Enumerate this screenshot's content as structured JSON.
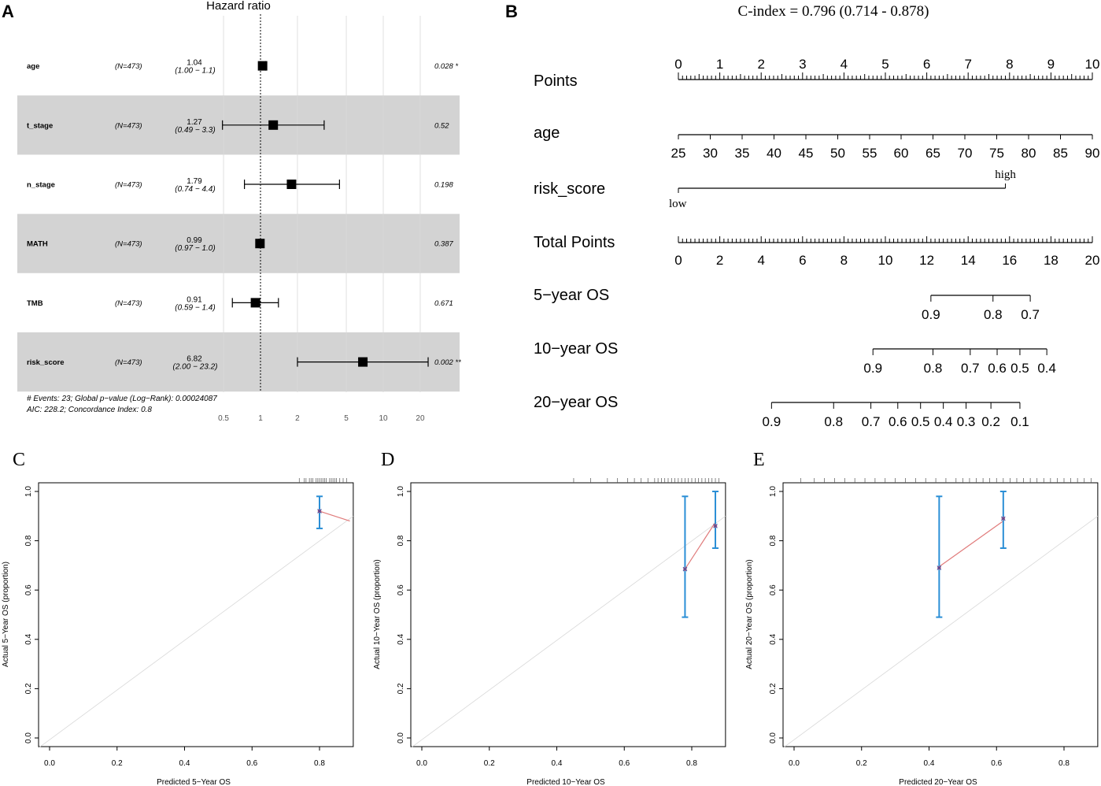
{
  "chart_data": [
    {
      "panel": "A",
      "type": "forest",
      "title": "Hazard ratio",
      "x_scale": "log",
      "x_ticks": [
        "0.5",
        "1",
        "2",
        "5",
        "10",
        "20"
      ],
      "reference_line": 1,
      "rows": [
        {
          "label": "age",
          "n": "(N=473)",
          "hr": 1.04,
          "lo": 1.0,
          "hi": 1.1,
          "hr_text": "1.04",
          "ci_text": "(1.00 −  1.1)",
          "p_text": "0.028 *",
          "shaded": false
        },
        {
          "label": "t_stage",
          "n": "(N=473)",
          "hr": 1.27,
          "lo": 0.49,
          "hi": 3.3,
          "hr_text": "1.27",
          "ci_text": "(0.49 −  3.3)",
          "p_text": "0.52",
          "shaded": true
        },
        {
          "label": "n_stage",
          "n": "(N=473)",
          "hr": 1.79,
          "lo": 0.74,
          "hi": 4.4,
          "hr_text": "1.79",
          "ci_text": "(0.74 −  4.4)",
          "p_text": "0.198",
          "shaded": false
        },
        {
          "label": "MATH",
          "n": "(N=473)",
          "hr": 0.99,
          "lo": 0.97,
          "hi": 1.0,
          "hr_text": "0.99",
          "ci_text": "(0.97 −  1.0)",
          "p_text": "0.387",
          "shaded": true
        },
        {
          "label": "TMB",
          "n": "(N=473)",
          "hr": 0.91,
          "lo": 0.59,
          "hi": 1.4,
          "hr_text": "0.91",
          "ci_text": "(0.59 −  1.4)",
          "p_text": "0.671",
          "shaded": false
        },
        {
          "label": "risk_score",
          "n": "(N=473)",
          "hr": 6.82,
          "lo": 2.0,
          "hi": 23.2,
          "hr_text": "6.82",
          "ci_text": "(2.00 − 23.2)",
          "p_text": "0.002 **",
          "shaded": true
        }
      ],
      "footnote_1": "# Events: 23; Global p−value (Log−Rank): 0.00024087",
      "footnote_2": "AIC: 228.2; Concordance Index: 0.8"
    },
    {
      "panel": "B",
      "type": "nomogram",
      "title": "C-index = 0.796 (0.714 - 0.878)",
      "scales": [
        {
          "name": "Points",
          "ticks": [
            {
              "v": 0,
              "label": "0"
            },
            {
              "v": 1,
              "label": "1"
            },
            {
              "v": 2,
              "label": "2"
            },
            {
              "v": 3,
              "label": "3"
            },
            {
              "v": 4,
              "label": "4"
            },
            {
              "v": 5,
              "label": "5"
            },
            {
              "v": 6,
              "label": "6"
            },
            {
              "v": 7,
              "label": "7"
            },
            {
              "v": 8,
              "label": "8"
            },
            {
              "v": 9,
              "label": "9"
            },
            {
              "v": 10,
              "label": "10"
            }
          ]
        },
        {
          "name": "age",
          "ticks": [
            {
              "v": 0,
              "label": "25"
            },
            {
              "v": 0.77,
              "label": "30"
            },
            {
              "v": 1.54,
              "label": "35"
            },
            {
              "v": 2.31,
              "label": "40"
            },
            {
              "v": 3.08,
              "label": "45"
            },
            {
              "v": 3.85,
              "label": "50"
            },
            {
              "v": 4.62,
              "label": "55"
            },
            {
              "v": 5.38,
              "label": "60"
            },
            {
              "v": 6.15,
              "label": "65"
            },
            {
              "v": 6.92,
              "label": "70"
            },
            {
              "v": 7.69,
              "label": "75"
            },
            {
              "v": 8.46,
              "label": "80"
            },
            {
              "v": 9.23,
              "label": "85"
            },
            {
              "v": 10,
              "label": "90"
            }
          ]
        },
        {
          "name": "risk_score",
          "low_label": "low",
          "high_label": "high",
          "low_v": 0,
          "high_v": 7.9
        },
        {
          "name": "Total Points",
          "ticks": [
            {
              "v": 0,
              "label": "0"
            },
            {
              "v": 2,
              "label": "2"
            },
            {
              "v": 4,
              "label": "4"
            },
            {
              "v": 6,
              "label": "6"
            },
            {
              "v": 8,
              "label": "8"
            },
            {
              "v": 10,
              "label": "10"
            },
            {
              "v": 12,
              "label": "12"
            },
            {
              "v": 14,
              "label": "14"
            },
            {
              "v": 16,
              "label": "16"
            },
            {
              "v": 18,
              "label": "18"
            },
            {
              "v": 20,
              "label": "20"
            }
          ]
        },
        {
          "name": "5−year OS",
          "ticks": [
            {
              "v": 12.2,
              "label": "0.9"
            },
            {
              "v": 15.2,
              "label": "0.8"
            },
            {
              "v": 17.0,
              "label": "0.7"
            }
          ]
        },
        {
          "name": "10−year OS",
          "ticks": [
            {
              "v": 9.4,
              "label": "0.9"
            },
            {
              "v": 12.3,
              "label": "0.8"
            },
            {
              "v": 14.1,
              "label": "0.7"
            },
            {
              "v": 15.4,
              "label": "0.6"
            },
            {
              "v": 16.5,
              "label": "0.5"
            },
            {
              "v": 17.8,
              "label": "0.4"
            }
          ]
        },
        {
          "name": "20−year OS",
          "ticks": [
            {
              "v": 4.5,
              "label": "0.9"
            },
            {
              "v": 7.5,
              "label": "0.8"
            },
            {
              "v": 9.3,
              "label": "0.7"
            },
            {
              "v": 10.6,
              "label": "0.6"
            },
            {
              "v": 11.7,
              "label": "0.5"
            },
            {
              "v": 12.8,
              "label": "0.4"
            },
            {
              "v": 13.9,
              "label": "0.3"
            },
            {
              "v": 15.1,
              "label": "0.2"
            },
            {
              "v": 16.5,
              "label": "0.1"
            }
          ]
        }
      ]
    },
    {
      "panel": "C",
      "type": "calibration",
      "xlabel": "Predicted 5−Year OS",
      "ylabel": "Actual 5−Year OS (proportion)",
      "xlim": [
        0,
        0.9
      ],
      "ylim": [
        0,
        1
      ],
      "x_ticks": [
        "0.0",
        "0.2",
        "0.4",
        "0.6",
        "0.8"
      ],
      "y_ticks": [
        "0.0",
        "0.2",
        "0.4",
        "0.6",
        "0.8",
        "1.0"
      ],
      "points": [
        {
          "x": 0.8,
          "y": 0.92,
          "lo": 0.85,
          "hi": 0.98
        }
      ],
      "curve": [
        [
          0.8,
          0.92
        ],
        [
          0.89,
          0.88
        ]
      ],
      "rug": [
        0.74,
        0.755,
        0.76,
        0.77,
        0.775,
        0.78,
        0.79,
        0.795,
        0.8,
        0.805,
        0.81,
        0.815,
        0.82,
        0.83,
        0.835,
        0.84,
        0.845,
        0.85,
        0.86,
        0.87,
        0.88
      ]
    },
    {
      "panel": "D",
      "type": "calibration",
      "xlabel": "Predicted 10−Year OS",
      "ylabel": "Actual 10−Year OS (proportion)",
      "xlim": [
        0,
        0.9
      ],
      "ylim": [
        0,
        1
      ],
      "x_ticks": [
        "0.0",
        "0.2",
        "0.4",
        "0.6",
        "0.8"
      ],
      "y_ticks": [
        "0.0",
        "0.2",
        "0.4",
        "0.6",
        "0.8",
        "1.0"
      ],
      "points": [
        {
          "x": 0.78,
          "y": 0.685,
          "lo": 0.49,
          "hi": 0.98
        },
        {
          "x": 0.87,
          "y": 0.86,
          "lo": 0.77,
          "hi": 1.0
        }
      ],
      "curve": [
        [
          0.78,
          0.685
        ],
        [
          0.87,
          0.875
        ]
      ],
      "rug": [
        0.45,
        0.5,
        0.55,
        0.58,
        0.61,
        0.63,
        0.65,
        0.67,
        0.69,
        0.7,
        0.71,
        0.72,
        0.73,
        0.74,
        0.75,
        0.76,
        0.77,
        0.78,
        0.79,
        0.8,
        0.81,
        0.82,
        0.83,
        0.84,
        0.85,
        0.86,
        0.87,
        0.88
      ]
    },
    {
      "panel": "E",
      "type": "calibration",
      "xlabel": "Predicted 20−Year OS",
      "ylabel": "Actual 20−Year OS (proportion)",
      "xlim": [
        0,
        0.9
      ],
      "ylim": [
        0,
        1
      ],
      "x_ticks": [
        "0.0",
        "0.2",
        "0.4",
        "0.6",
        "0.8"
      ],
      "y_ticks": [
        "0.0",
        "0.2",
        "0.4",
        "0.6",
        "0.8",
        "1.0"
      ],
      "points": [
        {
          "x": 0.43,
          "y": 0.69,
          "lo": 0.49,
          "hi": 0.98
        },
        {
          "x": 0.62,
          "y": 0.89,
          "lo": 0.77,
          "hi": 1.0
        }
      ],
      "curve": [
        [
          0.43,
          0.695
        ],
        [
          0.62,
          0.88
        ]
      ],
      "rug": [
        0.02,
        0.06,
        0.09,
        0.12,
        0.15,
        0.18,
        0.21,
        0.24,
        0.27,
        0.3,
        0.33,
        0.36,
        0.39,
        0.42,
        0.45,
        0.48,
        0.5,
        0.52,
        0.54,
        0.56,
        0.58,
        0.6,
        0.62,
        0.64,
        0.66,
        0.68,
        0.7,
        0.72,
        0.74,
        0.76,
        0.78,
        0.8,
        0.82,
        0.84,
        0.86,
        0.88
      ]
    }
  ]
}
